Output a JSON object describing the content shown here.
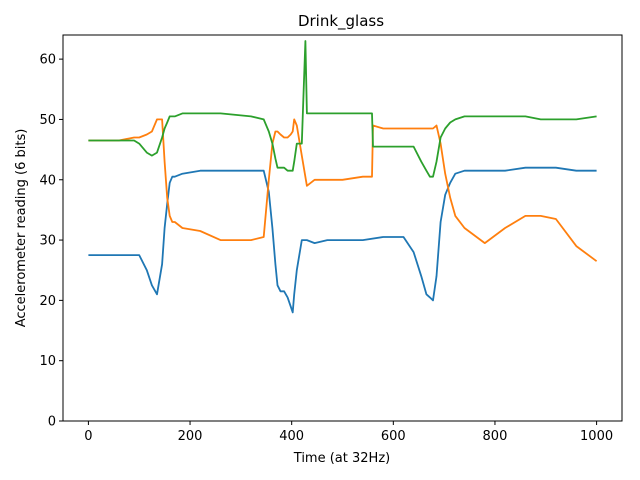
{
  "chart_data": {
    "type": "line",
    "title": "Drink_glass",
    "xlabel": "Time (at 32Hz)",
    "ylabel": "Accelerometer reading (6 bits)",
    "xlim": [
      -50,
      1050
    ],
    "ylim": [
      0,
      64
    ],
    "xticks": [
      0,
      200,
      400,
      600,
      800,
      1000
    ],
    "yticks": [
      0,
      10,
      20,
      30,
      40,
      50,
      60
    ],
    "grid": false,
    "legend": "none",
    "series": [
      {
        "color": "#1f77b4",
        "x": [
          0,
          30,
          60,
          90,
          100,
          115,
          125,
          135,
          145,
          150,
          155,
          160,
          165,
          170,
          185,
          220,
          260,
          320,
          345,
          355,
          362,
          368,
          372,
          378,
          385,
          392,
          398,
          402,
          405,
          410,
          420,
          430,
          445,
          470,
          500,
          540,
          580,
          620,
          640,
          655,
          665,
          672,
          678,
          685,
          693,
          702,
          712,
          722,
          740,
          780,
          820,
          860,
          890,
          920,
          960,
          1000
        ],
        "y": [
          27.5,
          27.5,
          27.5,
          27.5,
          27.5,
          25,
          22.5,
          21,
          26,
          32,
          36,
          39.5,
          40.5,
          40.5,
          41,
          41.5,
          41.5,
          41.5,
          41.5,
          38,
          32,
          26,
          22.5,
          21.5,
          21.5,
          20.5,
          19,
          18,
          21,
          25,
          30,
          30,
          29.5,
          30,
          30,
          30,
          30.5,
          30.5,
          28,
          24,
          21,
          20.5,
          20,
          24,
          33,
          37.5,
          39.5,
          41,
          41.5,
          41.5,
          41.5,
          42,
          42,
          42,
          41.5,
          41.5
        ]
      },
      {
        "color": "#ff7f0e",
        "x": [
          0,
          30,
          60,
          90,
          100,
          115,
          125,
          135,
          145,
          150,
          155,
          160,
          165,
          170,
          185,
          220,
          260,
          320,
          345,
          355,
          362,
          368,
          372,
          378,
          385,
          392,
          398,
          402,
          405,
          410,
          420,
          430,
          445,
          470,
          500,
          540,
          558,
          560,
          580,
          620,
          640,
          655,
          665,
          672,
          678,
          685,
          693,
          702,
          712,
          722,
          740,
          780,
          820,
          860,
          890,
          920,
          960,
          1000
        ],
        "y": [
          46.5,
          46.5,
          46.5,
          47,
          47,
          47.5,
          48,
          50,
          50,
          43,
          37,
          34,
          33,
          33,
          32,
          31.5,
          30,
          30,
          30.5,
          40,
          46,
          48,
          48,
          47.5,
          47,
          47,
          47.5,
          48,
          50,
          49,
          44,
          39,
          40,
          40,
          40,
          40.5,
          40.5,
          49,
          48.5,
          48.5,
          48.5,
          48.5,
          48.5,
          48.5,
          48.5,
          49,
          46,
          41,
          37,
          34,
          32,
          29.5,
          32,
          34,
          34,
          33.5,
          29,
          26.5
        ]
      },
      {
        "color": "#2ca02c",
        "x": [
          0,
          30,
          60,
          90,
          100,
          115,
          125,
          135,
          145,
          150,
          155,
          160,
          165,
          170,
          185,
          220,
          260,
          320,
          345,
          355,
          362,
          368,
          372,
          378,
          385,
          392,
          398,
          402,
          405,
          410,
          420,
          424,
          427,
          430,
          445,
          470,
          500,
          540,
          558,
          560,
          580,
          620,
          640,
          655,
          665,
          672,
          678,
          685,
          693,
          702,
          712,
          722,
          740,
          780,
          820,
          860,
          890,
          920,
          960,
          1000
        ],
        "y": [
          46.5,
          46.5,
          46.5,
          46.5,
          46,
          44.5,
          44,
          44.5,
          47,
          48.5,
          49.5,
          50.5,
          50.5,
          50.5,
          51,
          51,
          51,
          50.5,
          50,
          48,
          46,
          43.5,
          42,
          42,
          42,
          41.5,
          41.5,
          41.5,
          43,
          46,
          46,
          56,
          63,
          51,
          51,
          51,
          51,
          51,
          51,
          45.5,
          45.5,
          45.5,
          45.5,
          43,
          41.5,
          40.5,
          40.5,
          43,
          47,
          48.5,
          49.5,
          50,
          50.5,
          50.5,
          50.5,
          50.5,
          50,
          50,
          50,
          50.5
        ]
      }
    ]
  }
}
